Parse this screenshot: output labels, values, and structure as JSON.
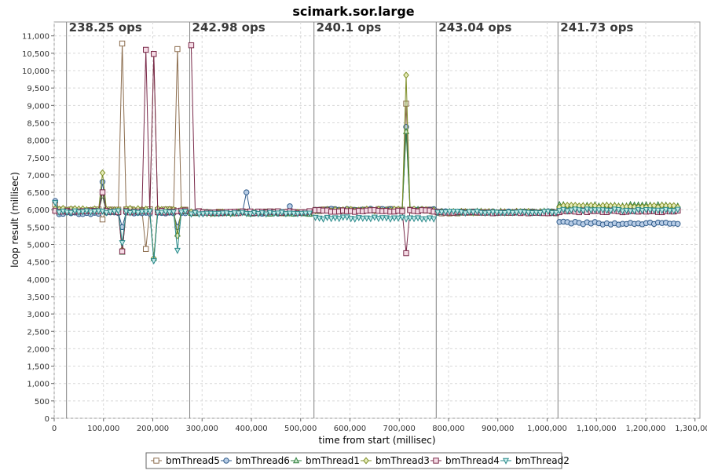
{
  "chart_data": {
    "type": "line",
    "title": "scimark.sor.large",
    "xlabel": "time from start (millisec)",
    "ylabel": "loop result (millisec)",
    "xlim": [
      0,
      1310000
    ],
    "ylim": [
      0,
      11400
    ],
    "x_ticks": [
      0,
      100000,
      200000,
      300000,
      400000,
      500000,
      600000,
      700000,
      800000,
      900000,
      1000000,
      1100000,
      1200000,
      1300000
    ],
    "x_tick_labels": [
      "0",
      "100,000",
      "200,000",
      "300,000",
      "400,000",
      "500,000",
      "600,000",
      "700,000",
      "800,000",
      "900,000",
      "1,000,000",
      "1,100,000",
      "1,200,000",
      "1,300,000"
    ],
    "y_ticks": [
      0,
      500,
      1000,
      1500,
      2000,
      2500,
      3000,
      3500,
      4000,
      4500,
      5000,
      5500,
      6000,
      6500,
      7000,
      7500,
      8000,
      8500,
      9000,
      9500,
      10000,
      10500,
      11000
    ],
    "y_tick_labels": [
      "0",
      "500",
      "1,000",
      "1,500",
      "2,000",
      "2,500",
      "3,000",
      "3,500",
      "4,000",
      "4,500",
      "5,000",
      "5,500",
      "6,000",
      "6,500",
      "7,000",
      "7,500",
      "8,000",
      "8,500",
      "9,000",
      "9,500",
      "10,000",
      "10,500",
      "11,000"
    ],
    "grid": true,
    "legend_position": "bottom",
    "annotations": [
      {
        "x": 25000,
        "label": "238.25 ops"
      },
      {
        "x": 275000,
        "label": "242.98 ops"
      },
      {
        "x": 527000,
        "label": "240.1 ops"
      },
      {
        "x": 775000,
        "label": "243.04 ops"
      },
      {
        "x": 1022000,
        "label": "241.73 ops"
      }
    ],
    "segments": [
      [
        2000,
        272000
      ],
      [
        278000,
        524000
      ],
      [
        530000,
        772000
      ],
      [
        778000,
        1020000
      ],
      [
        1025000,
        1265000
      ]
    ],
    "sample_step": 8000,
    "series": [
      {
        "name": "bmThread5",
        "marker": "square",
        "color": "#8c6d4e",
        "fill": "#ffffff",
        "levels": [
          5990,
          5920,
          5990,
          5920,
          5990
        ],
        "spikes": [
          [
            2000,
            6150
          ],
          [
            95000,
            5720
          ],
          [
            138000,
            10780
          ],
          [
            188000,
            4870
          ],
          [
            200000,
            10480
          ],
          [
            250000,
            10620
          ],
          [
            715000,
            9050
          ]
        ]
      },
      {
        "name": "bmThread6",
        "marker": "circle",
        "color": "#2e5a8a",
        "fill": "#b8cde6",
        "levels": [
          5900,
          5910,
          6000,
          5930,
          5610
        ],
        "spikes": [
          [
            2000,
            6250
          ],
          [
            95000,
            6800
          ],
          [
            140000,
            5500
          ],
          [
            190000,
            5500
          ],
          [
            200000,
            4580
          ],
          [
            252000,
            5500
          ],
          [
            390000,
            6500
          ],
          [
            480000,
            6100
          ],
          [
            715000,
            8380
          ]
        ]
      },
      {
        "name": "bmThread1",
        "marker": "triangle",
        "color": "#2f7f3f",
        "fill": "#c8e6c8",
        "levels": [
          5960,
          5900,
          5990,
          5930,
          6120
        ],
        "spikes": [
          [
            95000,
            6400
          ],
          [
            140000,
            4780
          ],
          [
            190000,
            4750
          ],
          [
            200000,
            4600
          ],
          [
            252000,
            5300
          ],
          [
            715000,
            8250
          ]
        ]
      },
      {
        "name": "bmThread3",
        "marker": "diamond",
        "color": "#7f8f2a",
        "fill": "#e6ecb8",
        "levels": [
          6010,
          5910,
          5990,
          5930,
          6100
        ],
        "spikes": [
          [
            95000,
            7060
          ],
          [
            140000,
            4850
          ],
          [
            190000,
            4780
          ],
          [
            200000,
            4600
          ],
          [
            252000,
            5250
          ],
          [
            715000,
            9870
          ]
        ]
      },
      {
        "name": "bmThread4",
        "marker": "square",
        "color": "#7a2a4a",
        "fill": "#f5dce6",
        "levels": [
          5950,
          5930,
          5960,
          5920,
          5950
        ],
        "spikes": [
          [
            95000,
            6500
          ],
          [
            140000,
            4800
          ],
          [
            185000,
            10600
          ],
          [
            205000,
            10480
          ],
          [
            275000,
            10730
          ],
          [
            715000,
            4750
          ]
        ]
      },
      {
        "name": "bmThread2",
        "marker": "triangle-down",
        "color": "#2a8a8a",
        "fill": "#c8ecec",
        "levels": [
          5940,
          5900,
          5760,
          5930,
          5990
        ],
        "spikes": [
          [
            2000,
            6200
          ],
          [
            140000,
            5050
          ],
          [
            190000,
            5100
          ],
          [
            200000,
            4530
          ],
          [
            252000,
            4830
          ]
        ]
      }
    ]
  }
}
